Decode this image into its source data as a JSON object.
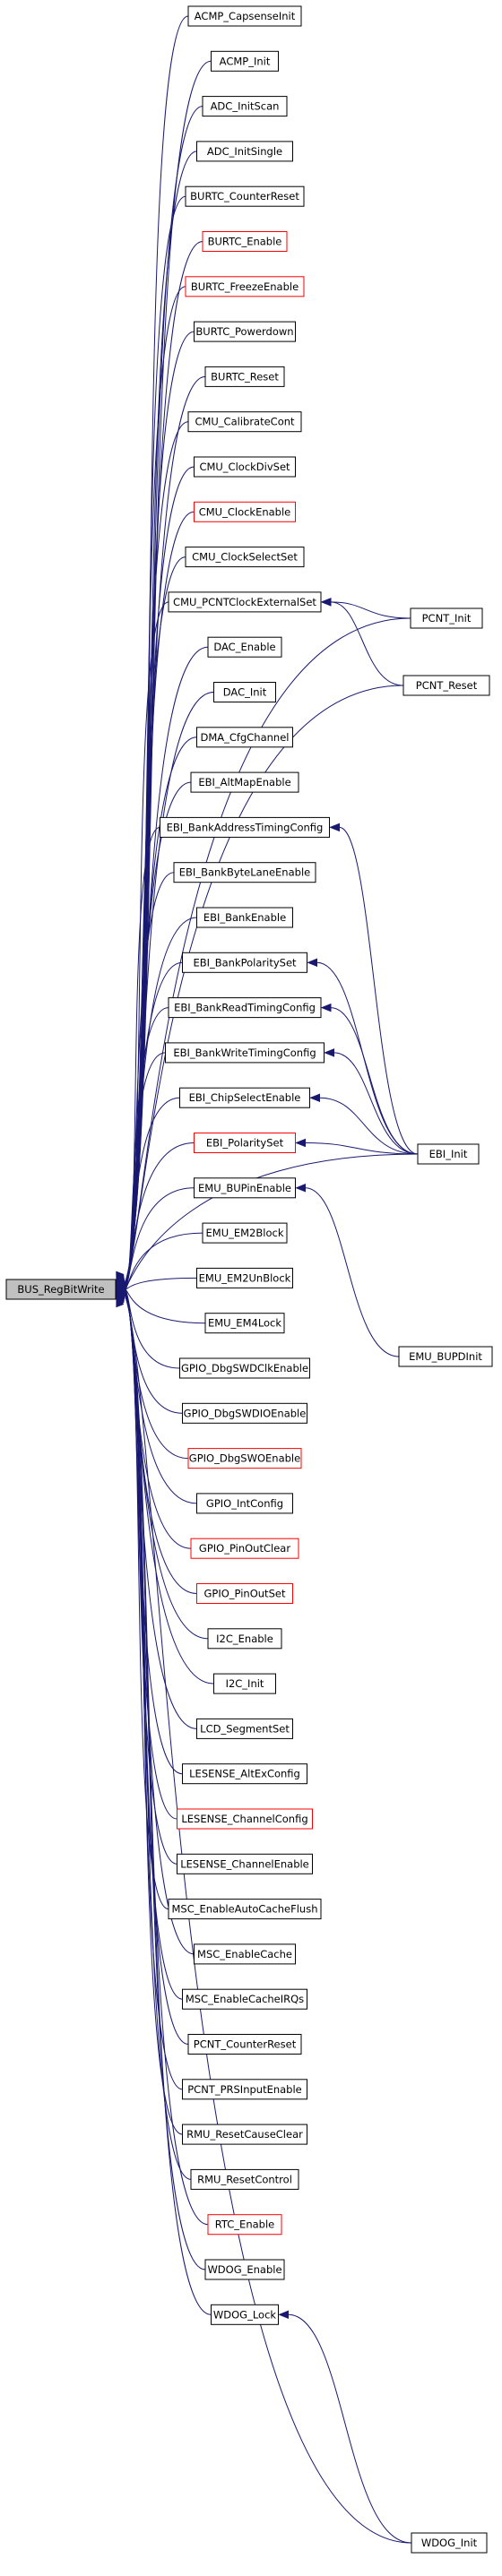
{
  "graph": {
    "colors": {
      "edge": "#191970",
      "highlight_border": "#ff0000",
      "root_fill": "#c0c0c0",
      "border": "#000000"
    },
    "root": {
      "id": "root",
      "label": "BUS_RegBitWrite"
    },
    "callers": [
      {
        "id": "n1",
        "label": "ACMP_CapsenseInit",
        "red": false
      },
      {
        "id": "n2",
        "label": "ACMP_Init",
        "red": false
      },
      {
        "id": "n3",
        "label": "ADC_InitScan",
        "red": false
      },
      {
        "id": "n4",
        "label": "ADC_InitSingle",
        "red": false
      },
      {
        "id": "n5",
        "label": "BURTC_CounterReset",
        "red": false
      },
      {
        "id": "n6",
        "label": "BURTC_Enable",
        "red": true
      },
      {
        "id": "n7",
        "label": "BURTC_FreezeEnable",
        "red": true
      },
      {
        "id": "n8",
        "label": "BURTC_Powerdown",
        "red": false
      },
      {
        "id": "n9",
        "label": "BURTC_Reset",
        "red": false
      },
      {
        "id": "n10",
        "label": "CMU_CalibrateCont",
        "red": false
      },
      {
        "id": "n11",
        "label": "CMU_ClockDivSet",
        "red": false
      },
      {
        "id": "n12",
        "label": "CMU_ClockEnable",
        "red": true
      },
      {
        "id": "n13",
        "label": "CMU_ClockSelectSet",
        "red": false
      },
      {
        "id": "n14",
        "label": "CMU_PCNTClockExternalSet",
        "red": false
      },
      {
        "id": "n15",
        "label": "DAC_Enable",
        "red": false
      },
      {
        "id": "n16",
        "label": "DAC_Init",
        "red": false
      },
      {
        "id": "n17",
        "label": "DMA_CfgChannel",
        "red": false
      },
      {
        "id": "n18",
        "label": "EBI_AltMapEnable",
        "red": false
      },
      {
        "id": "n19",
        "label": "EBI_BankAddressTimingConfig",
        "red": false
      },
      {
        "id": "n20",
        "label": "EBI_BankByteLaneEnable",
        "red": false
      },
      {
        "id": "n21",
        "label": "EBI_BankEnable",
        "red": false
      },
      {
        "id": "n22",
        "label": "EBI_BankPolaritySet",
        "red": false
      },
      {
        "id": "n23",
        "label": "EBI_BankReadTimingConfig",
        "red": false
      },
      {
        "id": "n24",
        "label": "EBI_BankWriteTimingConfig",
        "red": false
      },
      {
        "id": "n25",
        "label": "EBI_ChipSelectEnable",
        "red": false
      },
      {
        "id": "n26",
        "label": "EBI_PolaritySet",
        "red": true
      },
      {
        "id": "n27",
        "label": "EMU_BUPinEnable",
        "red": false
      },
      {
        "id": "n28",
        "label": "EMU_EM2Block",
        "red": false
      },
      {
        "id": "n29",
        "label": "EMU_EM2UnBlock",
        "red": false
      },
      {
        "id": "n30",
        "label": "EMU_EM4Lock",
        "red": false
      },
      {
        "id": "n31",
        "label": "GPIO_DbgSWDClkEnable",
        "red": false
      },
      {
        "id": "n32",
        "label": "GPIO_DbgSWDIOEnable",
        "red": false
      },
      {
        "id": "n33",
        "label": "GPIO_DbgSWOEnable",
        "red": true
      },
      {
        "id": "n34",
        "label": "GPIO_IntConfig",
        "red": false
      },
      {
        "id": "n35",
        "label": "GPIO_PinOutClear",
        "red": true
      },
      {
        "id": "n36",
        "label": "GPIO_PinOutSet",
        "red": true
      },
      {
        "id": "n37",
        "label": "I2C_Enable",
        "red": false
      },
      {
        "id": "n38",
        "label": "I2C_Init",
        "red": false
      },
      {
        "id": "n39",
        "label": "LCD_SegmentSet",
        "red": false
      },
      {
        "id": "n40",
        "label": "LESENSE_AltExConfig",
        "red": false
      },
      {
        "id": "n41",
        "label": "LESENSE_ChannelConfig",
        "red": true
      },
      {
        "id": "n42",
        "label": "LESENSE_ChannelEnable",
        "red": false
      },
      {
        "id": "n43",
        "label": "MSC_EnableAutoCacheFlush",
        "red": false
      },
      {
        "id": "n44",
        "label": "MSC_EnableCache",
        "red": false
      },
      {
        "id": "n45",
        "label": "MSC_EnableCacheIRQs",
        "red": false
      },
      {
        "id": "n46",
        "label": "PCNT_CounterReset",
        "red": false
      },
      {
        "id": "n47",
        "label": "PCNT_PRSInputEnable",
        "red": false
      },
      {
        "id": "n48",
        "label": "RMU_ResetCauseClear",
        "red": false
      },
      {
        "id": "n49",
        "label": "RMU_ResetControl",
        "red": false
      },
      {
        "id": "n50",
        "label": "RTC_Enable",
        "red": true
      },
      {
        "id": "n51",
        "label": "WDOG_Enable",
        "red": false
      },
      {
        "id": "n52",
        "label": "WDOG_Lock",
        "red": false
      }
    ],
    "outer": [
      {
        "id": "o1",
        "label": "PCNT_Init",
        "red": false
      },
      {
        "id": "o2",
        "label": "PCNT_Reset",
        "red": false
      },
      {
        "id": "o3",
        "label": "EBI_Init",
        "red": false
      },
      {
        "id": "o4",
        "label": "EMU_BUPDInit",
        "red": false
      },
      {
        "id": "o5",
        "label": "WDOG_Init",
        "red": false
      }
    ],
    "edges": [
      [
        "o1",
        "root"
      ],
      [
        "o1",
        "n14"
      ],
      [
        "o2",
        "root"
      ],
      [
        "o2",
        "n14"
      ],
      [
        "o3",
        "root"
      ],
      [
        "o3",
        "n19"
      ],
      [
        "o3",
        "n22"
      ],
      [
        "o3",
        "n23"
      ],
      [
        "o3",
        "n24"
      ],
      [
        "o3",
        "n25"
      ],
      [
        "o3",
        "n26"
      ],
      [
        "o4",
        "n27"
      ],
      [
        "o5",
        "root"
      ],
      [
        "o5",
        "n52"
      ]
    ]
  }
}
